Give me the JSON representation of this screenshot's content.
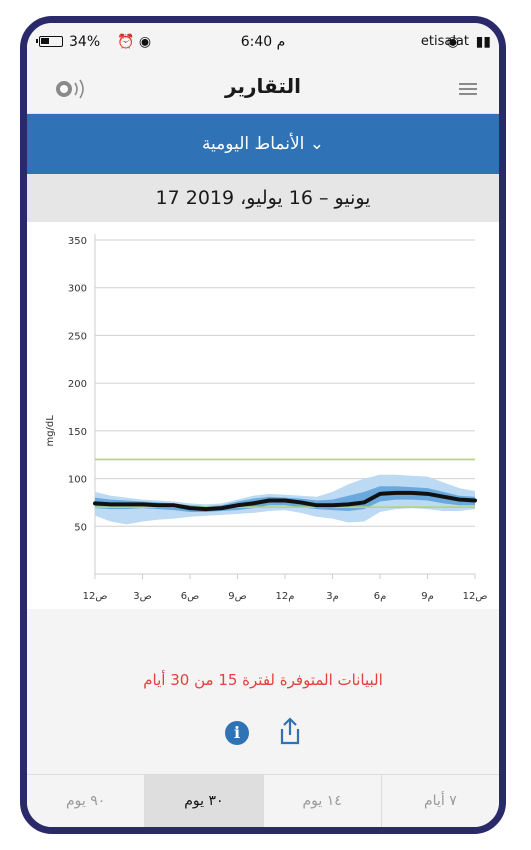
{
  "status_bar": {
    "battery": "34%",
    "time": "6:40 م",
    "carrier": "etisalat"
  },
  "header": {
    "title": "التقارير",
    "menu_icon": "hamburger-menu-icon",
    "sound_icon": "sound-wave-icon"
  },
  "report_selector": {
    "label": "الأنماط اليومية ⌄"
  },
  "date_range": "17 يونيو – 16 يوليو، 2019",
  "chart_data": {
    "type": "line",
    "ylabel": "mg/dL",
    "ylim": [
      0,
      350
    ],
    "yticks": [
      50,
      100,
      150,
      200,
      250,
      300,
      350
    ],
    "xticks": [
      "12ص",
      "3ص",
      "6ص",
      "9ص",
      "12م",
      "3م",
      "6م",
      "9م",
      "12ص"
    ],
    "target_range": {
      "upper": 120,
      "lower": 70
    },
    "series": [
      {
        "role": "median",
        "x": [
          0,
          1,
          2,
          3,
          4,
          5,
          6,
          7,
          8,
          9,
          10,
          11,
          12,
          13,
          14,
          15,
          16,
          17,
          18,
          19,
          20,
          21,
          22,
          23,
          24
        ],
        "values": [
          74,
          73,
          73,
          73,
          72,
          72,
          69,
          68,
          69,
          72,
          74,
          77,
          77,
          75,
          72,
          72,
          73,
          75,
          84,
          85,
          85,
          84,
          81,
          78,
          77
        ]
      },
      {
        "role": "inner-band",
        "x": [
          0,
          1,
          2,
          3,
          4,
          5,
          6,
          7,
          8,
          9,
          10,
          11,
          12,
          13,
          14,
          15,
          16,
          17,
          18,
          19,
          20,
          21,
          22,
          23,
          24
        ],
        "upper": [
          80,
          78,
          77,
          76,
          75,
          74,
          72,
          71,
          72,
          76,
          79,
          81,
          80,
          79,
          77,
          78,
          82,
          86,
          92,
          92,
          91,
          90,
          86,
          82,
          81
        ],
        "lower": [
          69,
          68,
          68,
          69,
          68,
          67,
          65,
          65,
          66,
          67,
          69,
          72,
          72,
          70,
          68,
          67,
          66,
          68,
          76,
          78,
          78,
          77,
          74,
          72,
          72
        ]
      },
      {
        "role": "outer-band",
        "x": [
          0,
          1,
          2,
          3,
          4,
          5,
          6,
          7,
          8,
          9,
          10,
          11,
          12,
          13,
          14,
          15,
          16,
          17,
          18,
          19,
          20,
          21,
          22,
          23,
          24
        ],
        "upper": [
          86,
          82,
          80,
          78,
          77,
          76,
          74,
          73,
          74,
          78,
          82,
          84,
          83,
          82,
          81,
          86,
          94,
          100,
          104,
          104,
          103,
          102,
          96,
          90,
          87
        ],
        "lower": [
          61,
          55,
          52,
          55,
          57,
          58,
          60,
          61,
          62,
          63,
          64,
          66,
          67,
          64,
          60,
          58,
          54,
          55,
          65,
          68,
          69,
          68,
          66,
          66,
          68
        ]
      }
    ],
    "colors": {
      "median": "#111111",
      "inner_band": "#6aa9dd",
      "outer_band": "#bcdaf3",
      "target": "#b5d66a",
      "grid": "#d0d0d0"
    }
  },
  "data_note": "البيانات المتوفرة لفترة 15 من 30 أيام",
  "actions": {
    "info_icon": "info-icon",
    "share_icon": "share-icon"
  },
  "tabs": [
    {
      "label": "٩٠ يوم",
      "active": false
    },
    {
      "label": "٣٠ يوم",
      "active": true
    },
    {
      "label": "١٤ يوم",
      "active": false
    },
    {
      "label": "٧ أيام",
      "active": false
    }
  ],
  "colors": {
    "accent_blue": "#2f72b5",
    "frame": "#2a2a6a",
    "note_red": "#e2413e"
  }
}
